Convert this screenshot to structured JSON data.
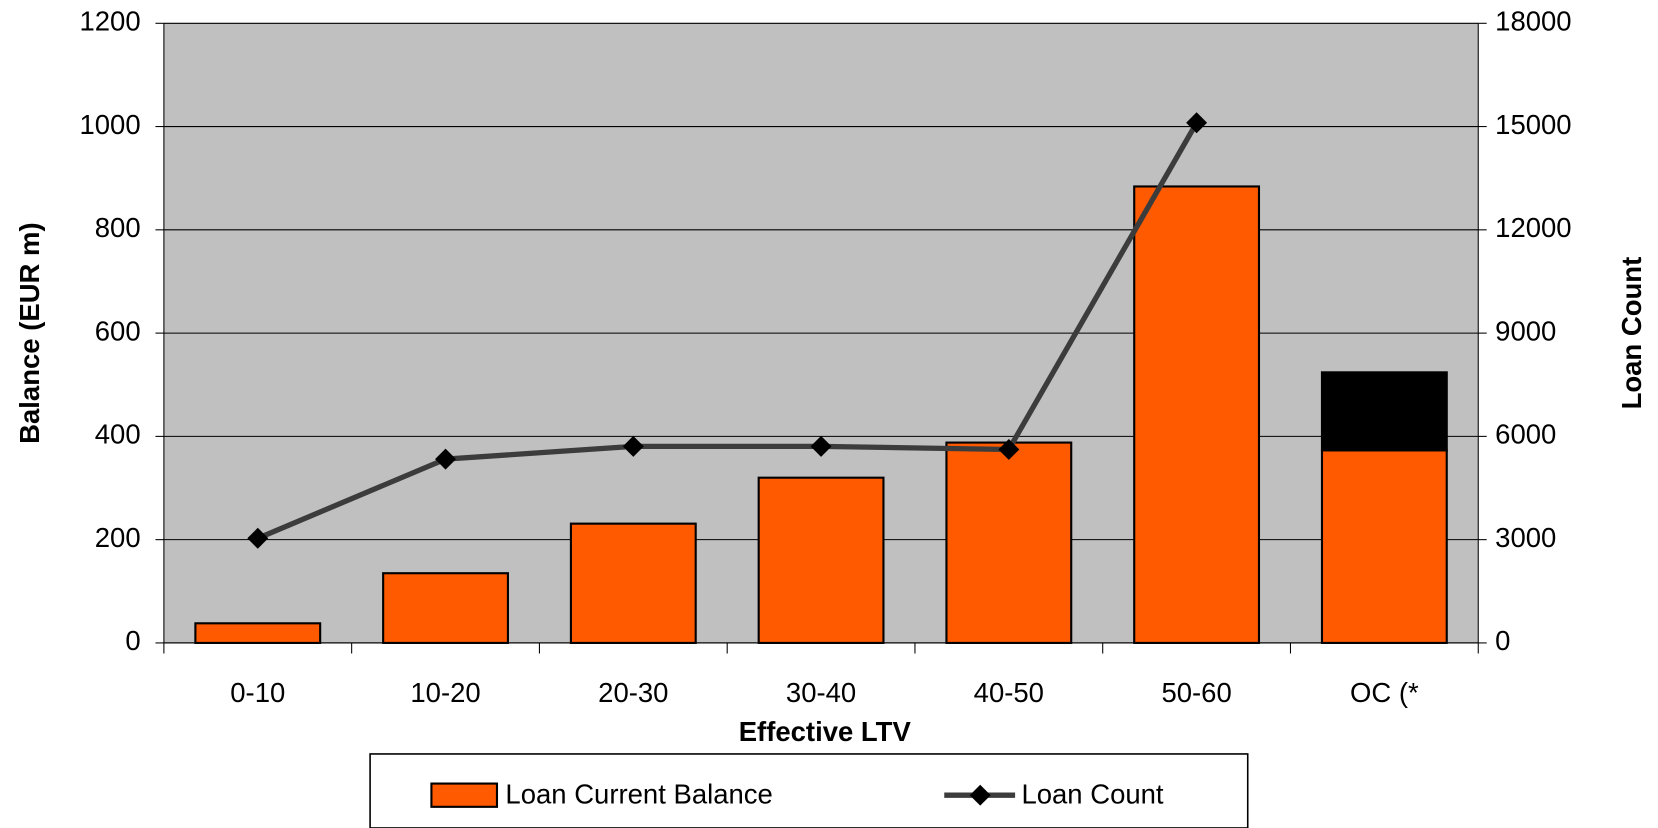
{
  "chart_data": {
    "type": "bar",
    "x_label": "Effective LTV",
    "y_label": "Balance (EUR m)",
    "y2_label": "Loan Count",
    "categories": [
      "0-10",
      "10-20",
      "20-30",
      "30-40",
      "40-50",
      "50-60",
      "OC (*"
    ],
    "series": [
      {
        "name": "Loan Current Balance",
        "color": "#ff5a00",
        "values": [
          38,
          135,
          231,
          320,
          388,
          884,
          373
        ]
      },
      {
        "color": "#000000",
        "values": [
          null,
          null,
          null,
          null,
          null,
          null,
          151
        ]
      },
      {
        "name": "Loan Count",
        "color": "#3c3c3c",
        "axis": "y2",
        "type": "line",
        "values": [
          3040,
          5340,
          5710,
          5710,
          5620,
          15110,
          null
        ]
      }
    ],
    "ylim": [
      0,
      1200
    ],
    "yticks": [
      0,
      200,
      400,
      600,
      800,
      1000,
      1200
    ],
    "y2lim": [
      0,
      18000
    ],
    "y2ticks": [
      0,
      3000,
      6000,
      9000,
      12000,
      15000,
      18000
    ],
    "grid": true,
    "legend": "bottom",
    "plot_background": "#c0c0c0"
  }
}
